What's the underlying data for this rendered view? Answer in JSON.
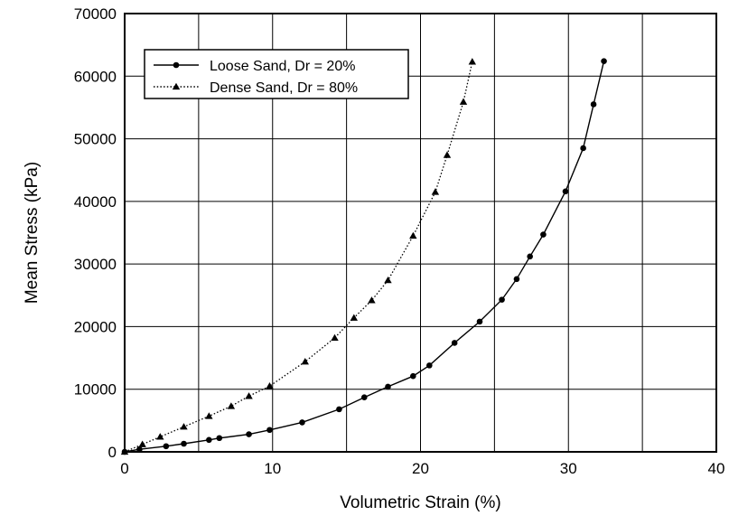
{
  "chart_data": {
    "type": "line",
    "xlabel": "Volumetric Strain (%)",
    "ylabel": "Mean Stress (kPa)",
    "xlim": [
      0,
      40
    ],
    "ylim": [
      0,
      70000
    ],
    "x_ticks": [
      0,
      10,
      20,
      30,
      40
    ],
    "y_ticks": [
      0,
      10000,
      20000,
      30000,
      40000,
      50000,
      60000,
      70000
    ],
    "grid": true,
    "x_grid_step": 5,
    "legend_position": "top-left",
    "series": [
      {
        "name": "Loose Sand, Dr = 20%",
        "style": "solid",
        "marker": "circle",
        "color": "#000000",
        "points": [
          [
            0,
            0
          ],
          [
            1.0,
            400
          ],
          [
            2.8,
            900
          ],
          [
            4.0,
            1300
          ],
          [
            5.7,
            1900
          ],
          [
            6.4,
            2200
          ],
          [
            8.4,
            2800
          ],
          [
            9.8,
            3500
          ],
          [
            12.0,
            4700
          ],
          [
            14.5,
            6800
          ],
          [
            16.2,
            8700
          ],
          [
            17.8,
            10400
          ],
          [
            19.5,
            12100
          ],
          [
            20.6,
            13800
          ],
          [
            22.3,
            17400
          ],
          [
            24.0,
            20800
          ],
          [
            25.5,
            24300
          ],
          [
            26.5,
            27600
          ],
          [
            27.4,
            31200
          ],
          [
            28.3,
            34700
          ],
          [
            29.8,
            41600
          ],
          [
            31.0,
            48500
          ],
          [
            31.7,
            55500
          ],
          [
            32.4,
            62400
          ]
        ]
      },
      {
        "name": "Dense Sand, Dr = 80%",
        "style": "dotted",
        "marker": "triangle",
        "color": "#000000",
        "points": [
          [
            0,
            0
          ],
          [
            1.2,
            1200
          ],
          [
            2.4,
            2400
          ],
          [
            4.0,
            4000
          ],
          [
            5.7,
            5700
          ],
          [
            7.2,
            7300
          ],
          [
            8.4,
            8900
          ],
          [
            9.8,
            10500
          ],
          [
            12.2,
            14400
          ],
          [
            14.2,
            18200
          ],
          [
            15.5,
            21400
          ],
          [
            16.7,
            24200
          ],
          [
            17.8,
            27400
          ],
          [
            19.5,
            34500
          ],
          [
            21.0,
            41500
          ],
          [
            21.8,
            47400
          ],
          [
            22.9,
            55900
          ],
          [
            23.5,
            62300
          ]
        ]
      }
    ]
  }
}
